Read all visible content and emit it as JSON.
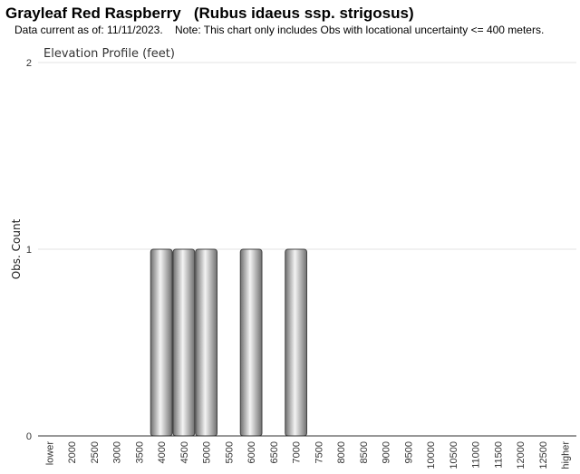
{
  "header": {
    "title": "Grayleaf Red Raspberry   (Rubus idaeus ssp. strigosus)",
    "subtitle": "Data current as of: 11/11/2023.    Note: This chart only includes Obs with locational uncertainty <= 400 meters."
  },
  "chart_data": {
    "type": "bar",
    "title": "Elevation Profile (feet)",
    "xlabel": "",
    "ylabel": "Obs. Count",
    "ylim": [
      0,
      2
    ],
    "yticks": [
      0,
      1,
      2
    ],
    "grid": true,
    "categories": [
      "lower",
      "2000",
      "2500",
      "3000",
      "3500",
      "4000",
      "4500",
      "5000",
      "5500",
      "6000",
      "6500",
      "7000",
      "7500",
      "8000",
      "8500",
      "9000",
      "9500",
      "10000",
      "10500",
      "11000",
      "11500",
      "12000",
      "12500",
      "higher"
    ],
    "values": [
      0,
      0,
      0,
      0,
      0,
      1,
      1,
      1,
      0,
      1,
      0,
      1,
      0,
      0,
      0,
      0,
      0,
      0,
      0,
      0,
      0,
      0,
      0,
      0
    ],
    "colors": {
      "bar_dark": "#6f6f6f",
      "bar_light": "#f4f4f4",
      "bar_stroke": "#444444",
      "grid": "#e3e3e3",
      "axis": "#333333"
    }
  }
}
